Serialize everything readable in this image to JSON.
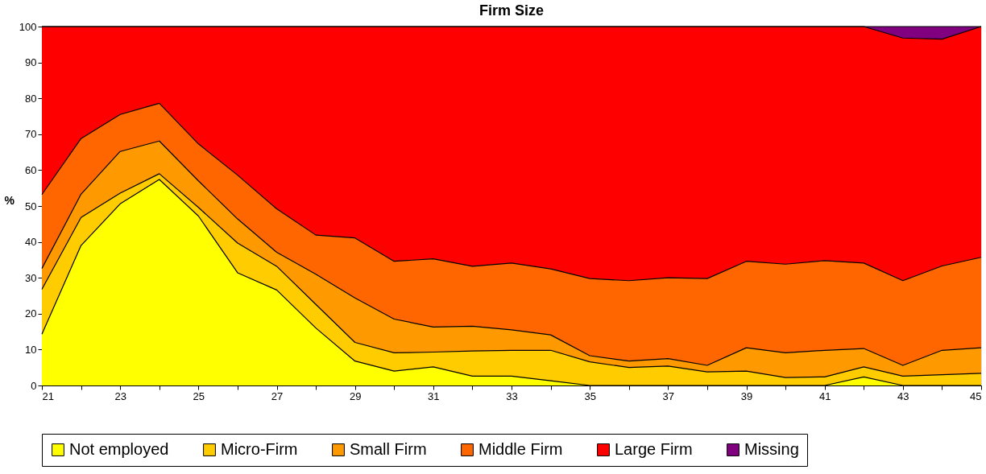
{
  "chart_data": {
    "type": "area",
    "stacked": true,
    "title": "Firm Size",
    "ylabel": "%",
    "x": [
      21,
      22,
      23,
      24,
      25,
      26,
      27,
      28,
      29,
      30,
      31,
      32,
      33,
      34,
      35,
      36,
      37,
      38,
      39,
      40,
      41,
      42,
      43,
      44,
      45
    ],
    "xlim": [
      21,
      45
    ],
    "xticks": [
      21,
      {
        "value": 22,
        "label": null
      },
      23,
      {
        "value": 24,
        "label": null
      },
      25,
      {
        "value": 26,
        "label": null
      },
      27,
      {
        "value": 28,
        "label": null
      },
      29,
      {
        "value": 30,
        "label": null
      },
      31,
      {
        "value": 32,
        "label": null
      },
      33,
      {
        "value": 34,
        "label": null
      },
      35,
      {
        "value": 36,
        "label": null
      },
      37,
      {
        "value": 38,
        "label": null
      },
      39,
      {
        "value": 40,
        "label": null
      },
      41,
      {
        "value": 42,
        "label": null
      },
      43,
      {
        "value": 44,
        "label": null
      },
      45
    ],
    "ylim": [
      0,
      100
    ],
    "yticks": [
      0,
      10,
      20,
      30,
      40,
      50,
      60,
      70,
      80,
      90,
      100
    ],
    "legend": "bottom",
    "series": [
      {
        "name": "Not employed",
        "color": "#ffff00",
        "values": [
          14.3,
          39,
          50.6,
          57.4,
          47.2,
          31.4,
          26.6,
          16,
          6.8,
          4,
          5.2,
          2.6,
          2.6,
          1.3,
          0,
          0,
          0,
          0,
          0,
          0,
          0,
          2.4,
          0,
          0,
          0
        ]
      },
      {
        "name": "Micro-Firm",
        "color": "#ffcc00",
        "values": [
          12.5,
          7.8,
          3,
          1.6,
          2.4,
          8.3,
          6.6,
          6.6,
          5.2,
          5.1,
          4.1,
          7,
          7.2,
          8.5,
          6.6,
          5,
          5.4,
          3.8,
          4,
          2.2,
          2.4,
          2.8,
          2.6,
          3,
          3.4
        ]
      },
      {
        "name": "Small Firm",
        "color": "#ff9900",
        "values": [
          5.8,
          6.5,
          11.6,
          9.1,
          7.4,
          6.7,
          3.9,
          8.4,
          12.4,
          9.4,
          7,
          6.9,
          5.7,
          4.3,
          1.7,
          1.8,
          2.1,
          1.8,
          6.5,
          6.9,
          7.4,
          5.1,
          3,
          6.8,
          7.1
        ]
      },
      {
        "name": "Middle Firm",
        "color": "#ff6600",
        "values": [
          20.6,
          15.5,
          10.3,
          10.5,
          10.3,
          12.2,
          12.1,
          10.9,
          16.7,
          16.1,
          19,
          16.7,
          18.6,
          18.4,
          21.5,
          22.4,
          22.5,
          24.2,
          24.1,
          24.7,
          25,
          23.8,
          23.6,
          23.5,
          25.2
        ]
      },
      {
        "name": "Large Firm",
        "color": "#ff0000",
        "values": [
          46.8,
          31.2,
          24.5,
          21.4,
          32.7,
          41.4,
          50.8,
          58.1,
          58.9,
          65.4,
          64.7,
          66.8,
          65.9,
          67.5,
          70.2,
          70.8,
          70,
          70.2,
          65.4,
          66.2,
          65.2,
          65.9,
          67.6,
          63.2,
          64.3
        ]
      },
      {
        "name": "Missing",
        "color": "#800080",
        "values": [
          0,
          0,
          0,
          0,
          0,
          0,
          0,
          0,
          0,
          0,
          0,
          0,
          0,
          0,
          0,
          0,
          0,
          0,
          0,
          0,
          0,
          0,
          3.2,
          3.5,
          0
        ]
      }
    ]
  }
}
